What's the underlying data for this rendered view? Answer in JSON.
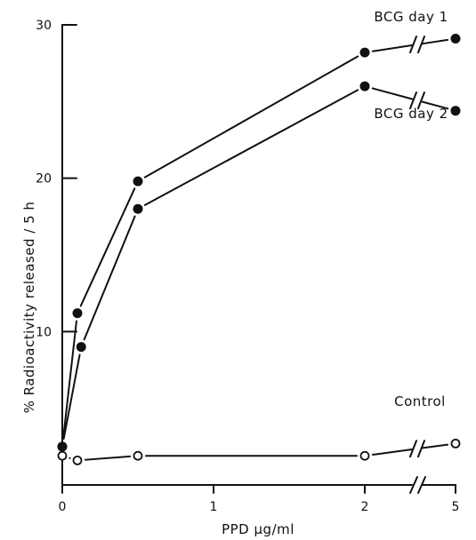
{
  "chart_data": {
    "type": "line",
    "title": "",
    "xlabel": "PPD μg/ml",
    "ylabel": "% Radioactivity released / 5 h",
    "x_ticks": [
      "0",
      "1",
      "2",
      "5"
    ],
    "y_ticks": [
      "10",
      "20",
      "30"
    ],
    "ylim": [
      0,
      30
    ],
    "x_axis_note": "broken axis between 2 and 5",
    "grid": false,
    "series": [
      {
        "name": "BCG day 1",
        "marker": "filled-circle",
        "x": [
          0,
          0.1,
          0.5,
          2,
          5
        ],
        "y": [
          2.5,
          11.2,
          19.8,
          28.2,
          29.1
        ]
      },
      {
        "name": "BCG day 2",
        "marker": "filled-circle",
        "x": [
          0,
          0.125,
          0.5,
          2,
          5
        ],
        "y": [
          2.5,
          9.0,
          18.0,
          26.0,
          24.4
        ]
      },
      {
        "name": "Control",
        "marker": "open-circle",
        "x": [
          0,
          0.1,
          0.5,
          2,
          5
        ],
        "y": [
          1.9,
          1.6,
          1.9,
          1.9,
          2.7
        ]
      }
    ]
  }
}
